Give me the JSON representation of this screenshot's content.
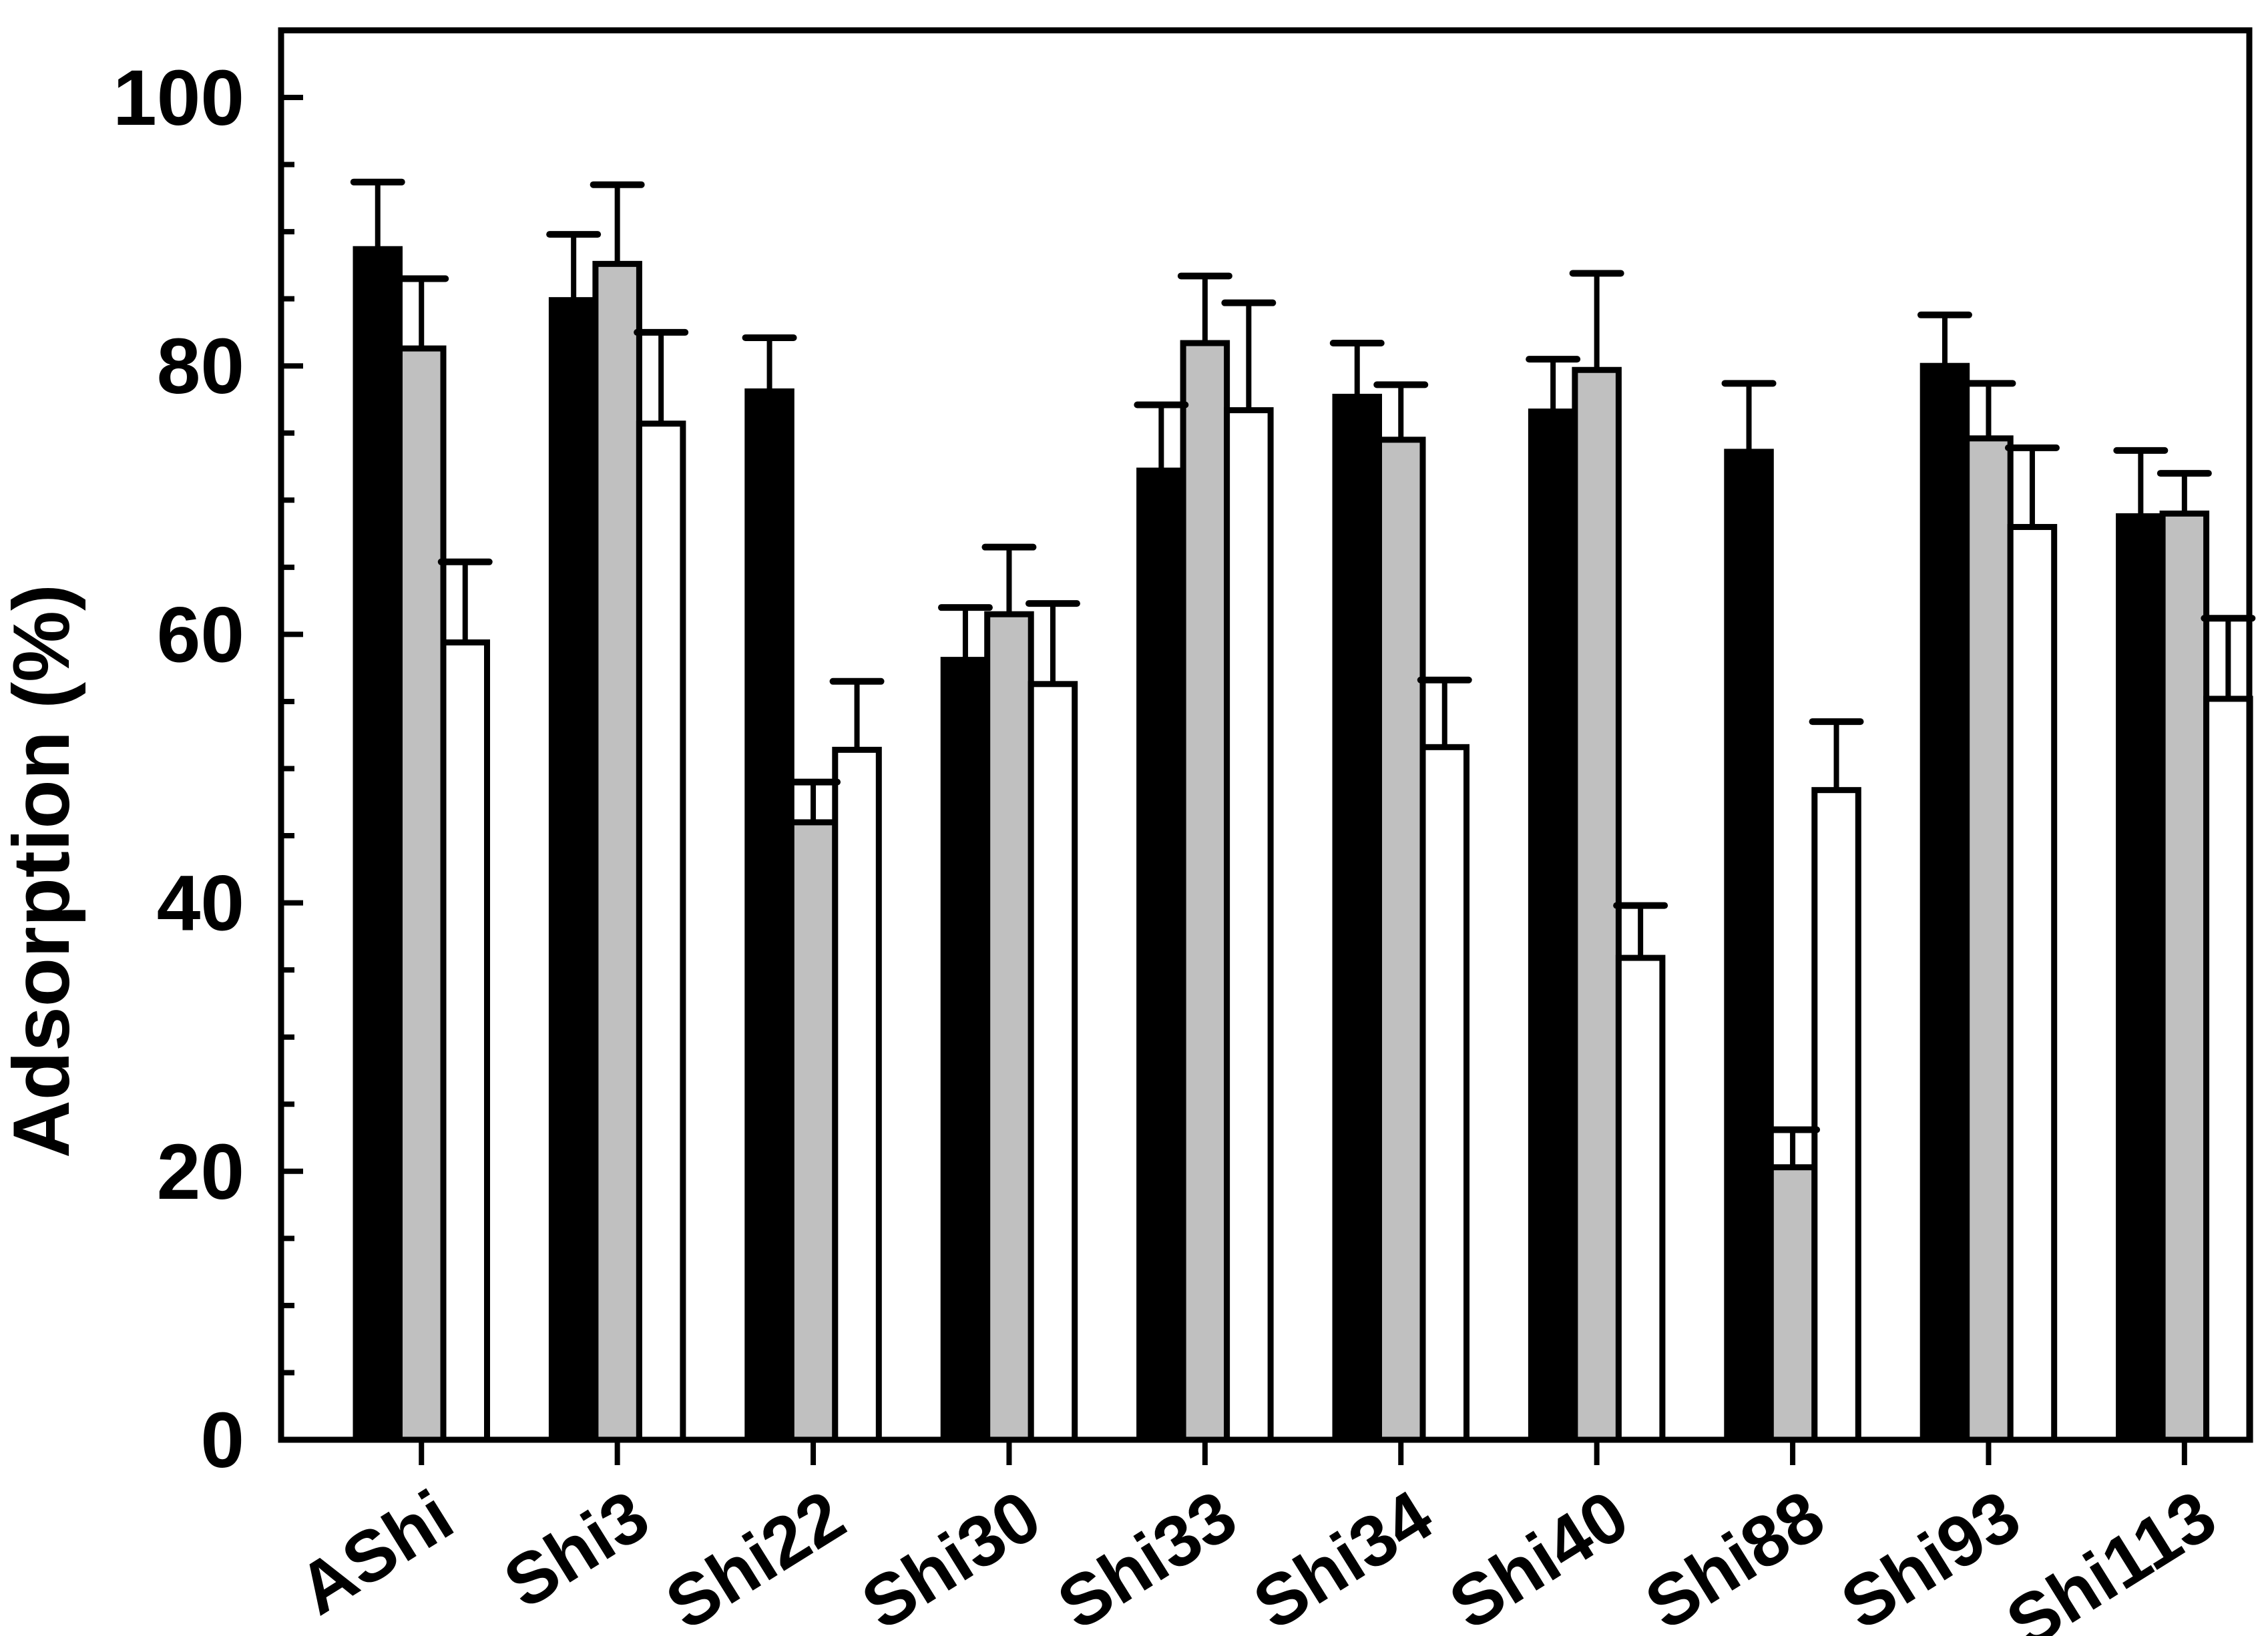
{
  "figure": {
    "background": "#ffffff",
    "foreground": "#000000"
  },
  "chart_data": {
    "type": "bar",
    "title": "",
    "xlabel": "",
    "ylabel": "Adsorption (%)",
    "ylim": [
      0,
      105
    ],
    "y_major_ticks": [
      0,
      20,
      40,
      60,
      80,
      100
    ],
    "y_major_tick_labels": [
      "0",
      "20",
      "40",
      "60",
      "80",
      "100"
    ],
    "y_minor_tick_step": 5,
    "grid": false,
    "legend_position": "none",
    "error_bars": "upper-only with caps",
    "categories": [
      "AShi",
      "Shi3",
      "Shi22",
      "Shi30",
      "Shi33",
      "Shi34",
      "Shi40",
      "Shi88",
      "Shi93",
      "Shi113"
    ],
    "series": [
      {
        "name": "black-bars",
        "fill": "#000000",
        "stroke": "#000000",
        "values": [
          88.7,
          84.9,
          78.1,
          58.1,
          72.2,
          77.7,
          76.6,
          73.6,
          80.0,
          68.8
        ],
        "errors": [
          5.0,
          4.9,
          4.0,
          3.9,
          4.9,
          4.0,
          3.9,
          5.1,
          3.8,
          4.9
        ]
      },
      {
        "name": "gray-bars",
        "fill": "#c0c0c0",
        "stroke": "#000000",
        "values": [
          81.3,
          87.6,
          46.0,
          61.5,
          81.7,
          74.5,
          79.7,
          20.3,
          74.6,
          69.0
        ],
        "errors": [
          5.2,
          5.9,
          3.0,
          5.0,
          5.0,
          4.1,
          7.2,
          2.8,
          4.1,
          3.0
        ]
      },
      {
        "name": "white-bars",
        "fill": "#ffffff",
        "stroke": "#000000",
        "values": [
          59.4,
          75.7,
          51.4,
          56.3,
          76.7,
          51.6,
          35.9,
          48.4,
          68.0,
          55.2
        ],
        "errors": [
          6.0,
          6.8,
          5.1,
          6.0,
          8.0,
          5.0,
          3.9,
          5.1,
          5.9,
          6.0
        ]
      }
    ]
  }
}
